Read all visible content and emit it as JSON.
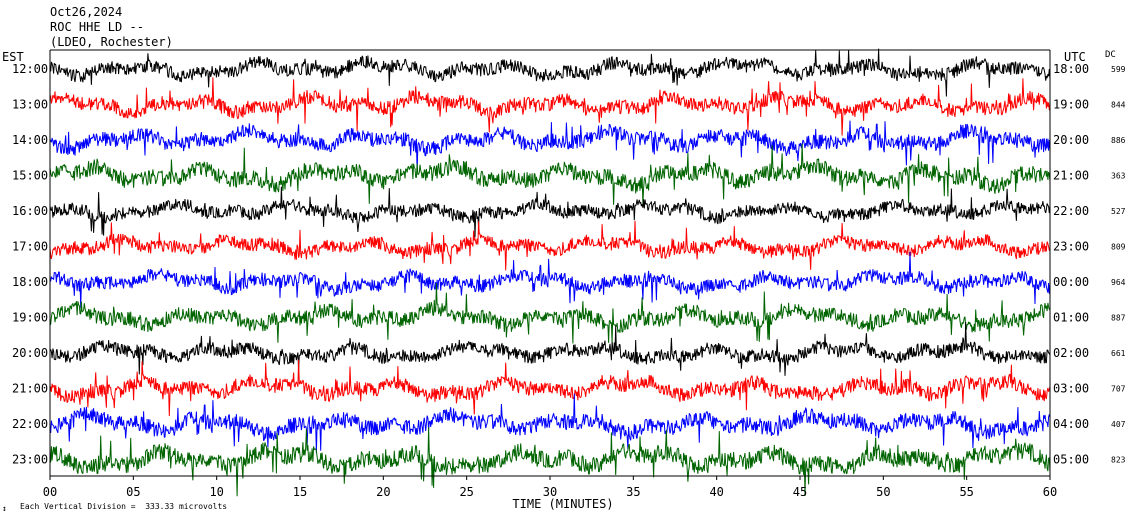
{
  "header": {
    "date": "Oct26,2024",
    "station": "ROC HHE LD --",
    "network": "(LDEO, Rochester)"
  },
  "chart_data": {
    "type": "line",
    "left_timezone": "EST",
    "right_timezone": "UTC",
    "dc_label": "DC",
    "xlabel": "TIME (MINUTES)",
    "x_ticks": [
      "00",
      "05",
      "10",
      "15",
      "20",
      "25",
      "30",
      "35",
      "40",
      "45",
      "50",
      "55",
      "60"
    ],
    "xlim": [
      0,
      60
    ],
    "scale_note": "Each Vertical Division =  333.33 microvolts",
    "corner_mark": "↕",
    "colors": {
      "black": "#000000",
      "red": "#ff0000",
      "blue": "#0000ff",
      "green": "#006400"
    },
    "rows": [
      {
        "left_label": "12:00",
        "right_label": "18:00",
        "dc": "599",
        "color": "black",
        "amplitude": 0.9
      },
      {
        "left_label": "13:00",
        "right_label": "19:00",
        "dc": "844",
        "color": "red",
        "amplitude": 0.95
      },
      {
        "left_label": "14:00",
        "right_label": "20:00",
        "dc": "886",
        "color": "blue",
        "amplitude": 1.0
      },
      {
        "left_label": "15:00",
        "right_label": "21:00",
        "dc": "363",
        "color": "green",
        "amplitude": 1.1
      },
      {
        "left_label": "16:00",
        "right_label": "22:00",
        "dc": "527",
        "color": "black",
        "amplitude": 0.85
      },
      {
        "left_label": "17:00",
        "right_label": "23:00",
        "dc": "809",
        "color": "red",
        "amplitude": 0.9
      },
      {
        "left_label": "18:00",
        "right_label": "00:00",
        "dc": "964",
        "color": "blue",
        "amplitude": 0.9
      },
      {
        "left_label": "19:00",
        "right_label": "01:00",
        "dc": "887",
        "color": "green",
        "amplitude": 1.0
      },
      {
        "left_label": "20:00",
        "right_label": "02:00",
        "dc": "661",
        "color": "black",
        "amplitude": 0.9
      },
      {
        "left_label": "21:00",
        "right_label": "03:00",
        "dc": "707",
        "color": "red",
        "amplitude": 1.0
      },
      {
        "left_label": "22:00",
        "right_label": "04:00",
        "dc": "407",
        "color": "blue",
        "amplitude": 1.05
      },
      {
        "left_label": "23:00",
        "right_label": "05:00",
        "dc": "823",
        "color": "green",
        "amplitude": 1.15
      }
    ]
  }
}
